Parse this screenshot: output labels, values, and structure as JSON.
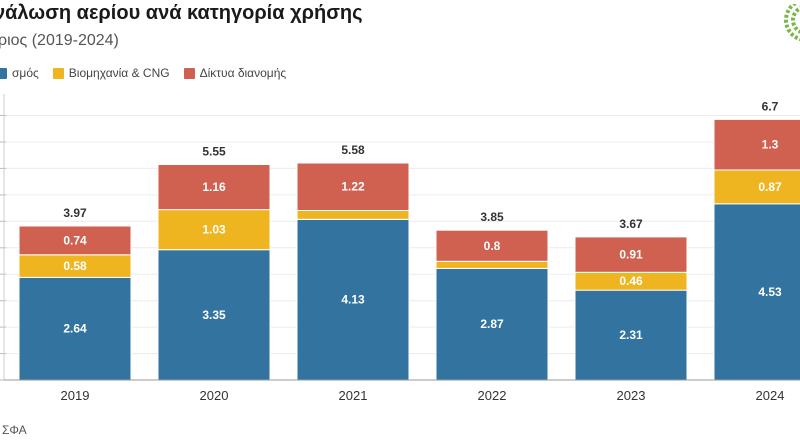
{
  "header": {
    "title": "νάλωση αερίου ανά κατηγορία χρήσης",
    "subtitle": "ριος (2019-2024)"
  },
  "legend": {
    "items": [
      {
        "label": "σμός",
        "color": "#33739f"
      },
      {
        "label": "Βιομηχανία & CNG",
        "color": "#eeb520"
      },
      {
        "label": "Δίκτυα διανομής",
        "color": "#d06050"
      }
    ]
  },
  "footer": {
    "source": "ΣΦΑ"
  },
  "logo": {
    "icon": "leaf-logo-icon",
    "color": "#7ab648"
  },
  "chart_data": {
    "type": "bar",
    "stacked": true,
    "categories": [
      "2019",
      "2020",
      "2021",
      "2022",
      "2023",
      "2024"
    ],
    "series": [
      {
        "name": "σμός",
        "color": "#33739f",
        "values": [
          2.64,
          3.35,
          4.13,
          2.87,
          2.31,
          4.53
        ]
      },
      {
        "name": "Βιομηχανία & CNG",
        "color": "#eeb520",
        "values": [
          0.58,
          1.03,
          0.23,
          0.18,
          0.46,
          0.87
        ]
      },
      {
        "name": "Δίκτυα διανομής",
        "color": "#d06050",
        "values": [
          0.74,
          1.16,
          1.22,
          0.8,
          0.91,
          1.3
        ]
      }
    ],
    "segment_labels": [
      [
        "2.64",
        "3.35",
        "4.13",
        "2.87",
        "2.31",
        "4.53"
      ],
      [
        "0.58",
        "1.03",
        "",
        "",
        "0.46",
        "0.87"
      ],
      [
        "0.74",
        "1.16",
        "1.22",
        "0.8",
        "0.91",
        "1.3"
      ]
    ],
    "totals": [
      "3.97",
      "5.55",
      "5.58",
      "3.85",
      "3.67",
      "6.7"
    ],
    "ylim": [
      0,
      7.25
    ],
    "grid": true,
    "legend_position": "top-left"
  }
}
